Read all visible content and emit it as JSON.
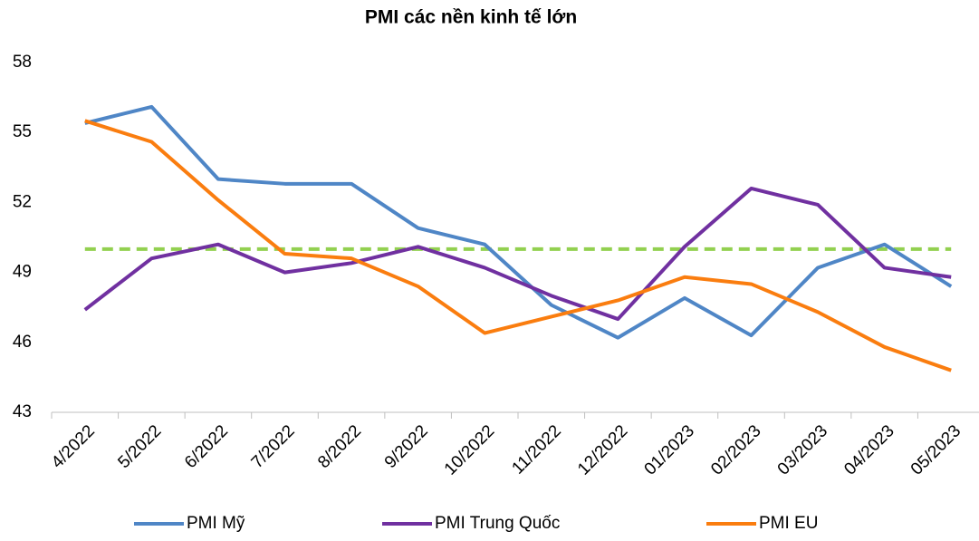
{
  "chart_data": {
    "type": "line",
    "title": "PMI các nền kinh tế lớn",
    "categories": [
      "4/2022",
      "5/2022",
      "6/2022",
      "7/2022",
      "8/2022",
      "9/2022",
      "10/2022",
      "11/2022",
      "12/2022",
      "01/2023",
      "02/2023",
      "03/2023",
      "04/2023",
      "05/2023"
    ],
    "series": [
      {
        "name": "PMI Mỹ",
        "color": "#4f86c6",
        "values": [
          55.4,
          56.1,
          53.0,
          52.8,
          52.8,
          50.9,
          50.2,
          47.6,
          46.2,
          47.9,
          46.3,
          49.2,
          50.2,
          48.4
        ]
      },
      {
        "name": "PMI Trung Quốc",
        "color": "#7030a0",
        "values": [
          47.4,
          49.6,
          50.2,
          49.0,
          49.4,
          50.1,
          49.2,
          48.0,
          47.0,
          50.1,
          52.6,
          51.9,
          49.2,
          48.8
        ]
      },
      {
        "name": "PMI EU",
        "color": "#fa7d0f",
        "values": [
          55.5,
          54.6,
          52.1,
          49.8,
          49.6,
          48.4,
          46.4,
          47.1,
          47.8,
          48.8,
          48.5,
          47.3,
          45.8,
          44.8
        ]
      }
    ],
    "reference_line": {
      "value": 50,
      "color": "#92d050"
    },
    "ylim": [
      43,
      58
    ],
    "yticks": [
      43,
      46,
      49,
      52,
      55,
      58
    ],
    "grid": false,
    "legend": "bottom"
  }
}
